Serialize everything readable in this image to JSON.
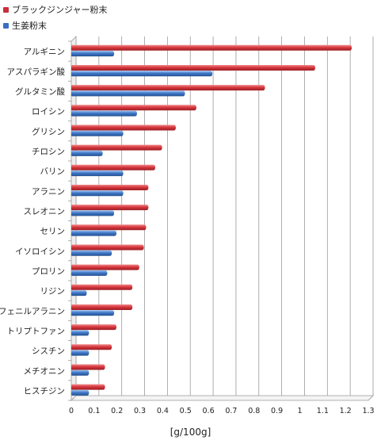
{
  "chart_data": {
    "type": "bar",
    "orientation": "horizontal",
    "xlabel": "[g/100g]",
    "xlim": [
      0,
      1.3
    ],
    "xticks": [
      "0",
      "0.1",
      "0.2",
      "0.3",
      "0.4",
      "0.5",
      "0.6",
      "0.7",
      "0.8",
      "0.9",
      "1",
      "1.1",
      "1.2",
      "1.3"
    ],
    "grid": true,
    "legend_position": "top-left",
    "categories": [
      "アルギニン",
      "アスパラギン酸",
      "グルタミン酸",
      "ロイシン",
      "グリシン",
      "チロシン",
      "バリン",
      "アラニン",
      "スレオニン",
      "セリン",
      "イソロイシン",
      "プロリン",
      "リジン",
      "フェニルアラニン",
      "トリプトファン",
      "シスチン",
      "メチオニン",
      "ヒスチジン"
    ],
    "series": [
      {
        "name": "ブラックジンジャー粉末",
        "color": "#c8303a",
        "values": [
          1.22,
          1.06,
          0.84,
          0.54,
          0.45,
          0.39,
          0.36,
          0.33,
          0.33,
          0.32,
          0.31,
          0.29,
          0.26,
          0.26,
          0.19,
          0.17,
          0.14,
          0.14
        ]
      },
      {
        "name": "生姜粉末",
        "color": "#3a6fc0",
        "values": [
          0.18,
          0.61,
          0.49,
          0.28,
          0.22,
          0.13,
          0.22,
          0.22,
          0.18,
          0.19,
          0.17,
          0.15,
          0.06,
          0.18,
          0.07,
          0.07,
          0.07,
          0.07
        ]
      }
    ]
  }
}
